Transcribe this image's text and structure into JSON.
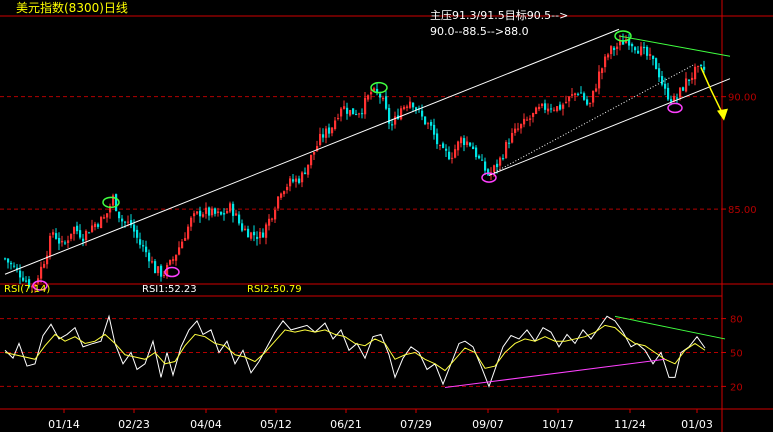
{
  "header": {
    "title": "美元指数(8300)日线",
    "annotation_line1": "主压91.3/91.5目标90.5-->",
    "annotation_line2": "90.0--88.5-->88.0"
  },
  "rsi_panel": {
    "label": "RSI(7,14)",
    "rsi1_label": "RSI1:52.23",
    "rsi2_label": "RSI2:50.79"
  },
  "colors": {
    "up": "#ff3232",
    "down": "#00e5e5",
    "grid": "#b30000",
    "axis": "#d00000",
    "rsi1": "#ffffff",
    "rsi2": "#ffff40",
    "trendline": "#ffffff",
    "marker_low": "#ff40ff",
    "marker_high": "#40ff40",
    "arrow": "#ffff00",
    "title": "#ffff00"
  },
  "chart_data": [
    {
      "type": "candlestick",
      "title": "美元指数(8300)日线",
      "x_tick_labels": [
        "01/14",
        "02/23",
        "04/04",
        "05/12",
        "06/21",
        "07/29",
        "09/07",
        "10/17",
        "11/24",
        "01/03"
      ],
      "y_ticks": [
        "85.00",
        "90.00"
      ],
      "ylim": [
        81.8,
        93.5
      ],
      "price_series": [
        [
          0,
          82.8
        ],
        [
          8,
          82.4
        ],
        [
          18,
          82.0
        ],
        [
          28,
          81.5
        ],
        [
          38,
          82.6
        ],
        [
          48,
          84.0
        ],
        [
          58,
          83.3
        ],
        [
          68,
          84.2
        ],
        [
          78,
          83.8
        ],
        [
          88,
          84.3
        ],
        [
          100,
          84.6
        ],
        [
          108,
          85.5
        ],
        [
          116,
          84.5
        ],
        [
          126,
          84.3
        ],
        [
          134,
          83.5
        ],
        [
          144,
          82.9
        ],
        [
          150,
          82.3
        ],
        [
          158,
          82.1
        ],
        [
          166,
          82.6
        ],
        [
          176,
          83.5
        ],
        [
          186,
          84.5
        ],
        [
          196,
          84.9
        ],
        [
          206,
          84.8
        ],
        [
          216,
          84.7
        ],
        [
          226,
          85.1
        ],
        [
          236,
          84.2
        ],
        [
          246,
          83.9
        ],
        [
          256,
          83.8
        ],
        [
          266,
          84.7
        ],
        [
          276,
          85.9
        ],
        [
          286,
          86.2
        ],
        [
          296,
          86.4
        ],
        [
          306,
          87.3
        ],
        [
          316,
          88.2
        ],
        [
          326,
          88.6
        ],
        [
          336,
          89.6
        ],
        [
          346,
          89.3
        ],
        [
          356,
          89.4
        ],
        [
          366,
          90.2
        ],
        [
          376,
          90.0
        ],
        [
          386,
          88.6
        ],
        [
          396,
          89.5
        ],
        [
          406,
          89.9
        ],
        [
          416,
          89.1
        ],
        [
          426,
          88.6
        ],
        [
          436,
          87.5
        ],
        [
          446,
          87.4
        ],
        [
          456,
          88.1
        ],
        [
          466,
          87.9
        ],
        [
          476,
          87.0
        ],
        [
          484,
          86.5
        ],
        [
          494,
          87.1
        ],
        [
          504,
          88.1
        ],
        [
          514,
          88.6
        ],
        [
          524,
          89.0
        ],
        [
          534,
          89.4
        ],
        [
          544,
          89.6
        ],
        [
          554,
          89.5
        ],
        [
          564,
          89.9
        ],
        [
          574,
          90.3
        ],
        [
          584,
          89.5
        ],
        [
          594,
          91.0
        ],
        [
          604,
          92.0
        ],
        [
          614,
          92.3
        ],
        [
          622,
          92.6
        ],
        [
          632,
          92.2
        ],
        [
          642,
          91.8
        ],
        [
          652,
          91.3
        ],
        [
          660,
          90.2
        ],
        [
          670,
          89.8
        ],
        [
          680,
          90.6
        ],
        [
          690,
          91.1
        ],
        [
          700,
          91.2
        ]
      ],
      "channel_lines": [
        {
          "from": [
            0,
            82.1
          ],
          "to": [
            614,
            93.0
          ]
        },
        {
          "from": [
            484,
            86.5
          ],
          "to": [
            725,
            90.8
          ]
        }
      ],
      "dotted_line": {
        "from": [
          484,
          86.5
        ],
        "to": [
          688,
          91.4
        ]
      },
      "resistance_line": {
        "from": [
          614,
          92.7
        ],
        "to": [
          725,
          91.8
        ]
      },
      "swing_lows": [
        [
          35,
          81.6
        ],
        [
          167,
          82.2
        ],
        [
          484,
          86.4
        ],
        [
          670,
          89.5
        ]
      ],
      "swing_highs": [
        [
          106,
          85.3
        ],
        [
          374,
          90.4
        ],
        [
          618,
          92.7
        ]
      ],
      "forecast_arrow": {
        "points": [
          [
            696,
            91.3
          ],
          [
            706,
            90.3
          ],
          [
            718,
            89.2
          ]
        ]
      }
    },
    {
      "type": "line",
      "title": "RSI(7,14)",
      "y_ticks": [
        "20",
        "50",
        "80"
      ],
      "ylim": [
        0,
        100
      ],
      "series": [
        {
          "name": "RSI1",
          "values": [
            [
              0,
              52
            ],
            [
              8,
              45
            ],
            [
              14,
              58
            ],
            [
              22,
              38
            ],
            [
              30,
              40
            ],
            [
              38,
              65
            ],
            [
              46,
              75
            ],
            [
              54,
              62
            ],
            [
              62,
              66
            ],
            [
              70,
              72
            ],
            [
              78,
              55
            ],
            [
              88,
              58
            ],
            [
              96,
              60
            ],
            [
              104,
              82
            ],
            [
              110,
              58
            ],
            [
              118,
              40
            ],
            [
              126,
              50
            ],
            [
              132,
              35
            ],
            [
              140,
              40
            ],
            [
              148,
              60
            ],
            [
              156,
              28
            ],
            [
              162,
              50
            ],
            [
              168,
              30
            ],
            [
              176,
              55
            ],
            [
              184,
              70
            ],
            [
              192,
              78
            ],
            [
              198,
              66
            ],
            [
              206,
              70
            ],
            [
              214,
              50
            ],
            [
              222,
              60
            ],
            [
              230,
              40
            ],
            [
              238,
              52
            ],
            [
              246,
              32
            ],
            [
              254,
              42
            ],
            [
              262,
              55
            ],
            [
              270,
              68
            ],
            [
              278,
              78
            ],
            [
              286,
              70
            ],
            [
              294,
              72
            ],
            [
              302,
              74
            ],
            [
              310,
              68
            ],
            [
              320,
              76
            ],
            [
              328,
              62
            ],
            [
              336,
              70
            ],
            [
              344,
              52
            ],
            [
              352,
              58
            ],
            [
              360,
              45
            ],
            [
              368,
              64
            ],
            [
              376,
              66
            ],
            [
              384,
              48
            ],
            [
              390,
              28
            ],
            [
              398,
              45
            ],
            [
              406,
              55
            ],
            [
              414,
              50
            ],
            [
              422,
              35
            ],
            [
              430,
              40
            ],
            [
              438,
              22
            ],
            [
              446,
              40
            ],
            [
              454,
              58
            ],
            [
              460,
              60
            ],
            [
              468,
              55
            ],
            [
              476,
              38
            ],
            [
              484,
              20
            ],
            [
              490,
              35
            ],
            [
              498,
              55
            ],
            [
              506,
              65
            ],
            [
              514,
              62
            ],
            [
              522,
              70
            ],
            [
              530,
              60
            ],
            [
              538,
              72
            ],
            [
              546,
              68
            ],
            [
              554,
              55
            ],
            [
              562,
              66
            ],
            [
              570,
              58
            ],
            [
              578,
              70
            ],
            [
              586,
              62
            ],
            [
              594,
              72
            ],
            [
              602,
              82
            ],
            [
              610,
              78
            ],
            [
              618,
              68
            ],
            [
              626,
              55
            ],
            [
              632,
              58
            ],
            [
              640,
              52
            ],
            [
              648,
              40
            ],
            [
              656,
              50
            ],
            [
              664,
              28
            ],
            [
              670,
              28
            ],
            [
              676,
              50
            ],
            [
              684,
              55
            ],
            [
              692,
              64
            ],
            [
              700,
              54
            ]
          ]
        },
        {
          "name": "RSI2",
          "values": [
            [
              0,
              50
            ],
            [
              10,
              48
            ],
            [
              20,
              46
            ],
            [
              30,
              44
            ],
            [
              40,
              56
            ],
            [
              50,
              66
            ],
            [
              60,
              60
            ],
            [
              70,
              64
            ],
            [
              80,
              58
            ],
            [
              90,
              60
            ],
            [
              100,
              66
            ],
            [
              110,
              58
            ],
            [
              120,
              48
            ],
            [
              130,
              46
            ],
            [
              140,
              44
            ],
            [
              150,
              50
            ],
            [
              160,
              40
            ],
            [
              170,
              42
            ],
            [
              180,
              56
            ],
            [
              190,
              66
            ],
            [
              200,
              64
            ],
            [
              210,
              58
            ],
            [
              220,
              56
            ],
            [
              230,
              48
            ],
            [
              240,
              46
            ],
            [
              250,
              42
            ],
            [
              260,
              50
            ],
            [
              270,
              60
            ],
            [
              280,
              70
            ],
            [
              290,
              68
            ],
            [
              300,
              70
            ],
            [
              310,
              68
            ],
            [
              320,
              70
            ],
            [
              330,
              66
            ],
            [
              340,
              64
            ],
            [
              350,
              58
            ],
            [
              360,
              56
            ],
            [
              370,
              62
            ],
            [
              380,
              58
            ],
            [
              390,
              44
            ],
            [
              400,
              48
            ],
            [
              410,
              50
            ],
            [
              420,
              44
            ],
            [
              430,
              40
            ],
            [
              440,
              34
            ],
            [
              450,
              44
            ],
            [
              460,
              54
            ],
            [
              470,
              50
            ],
            [
              480,
              36
            ],
            [
              490,
              38
            ],
            [
              500,
              50
            ],
            [
              510,
              58
            ],
            [
              520,
              62
            ],
            [
              530,
              60
            ],
            [
              540,
              64
            ],
            [
              550,
              60
            ],
            [
              560,
              60
            ],
            [
              570,
              62
            ],
            [
              580,
              64
            ],
            [
              590,
              68
            ],
            [
              600,
              74
            ],
            [
              610,
              72
            ],
            [
              620,
              64
            ],
            [
              630,
              58
            ],
            [
              640,
              56
            ],
            [
              650,
              50
            ],
            [
              660,
              44
            ],
            [
              670,
              40
            ],
            [
              680,
              52
            ],
            [
              690,
              58
            ],
            [
              700,
              52
            ]
          ]
        }
      ],
      "rsi_upper_trend": {
        "from": [
          610,
          82
        ],
        "to": [
          720,
          62
        ]
      },
      "rsi_lower_trend": {
        "from": [
          440,
          19
        ],
        "to": [
          660,
          44
        ]
      }
    }
  ]
}
